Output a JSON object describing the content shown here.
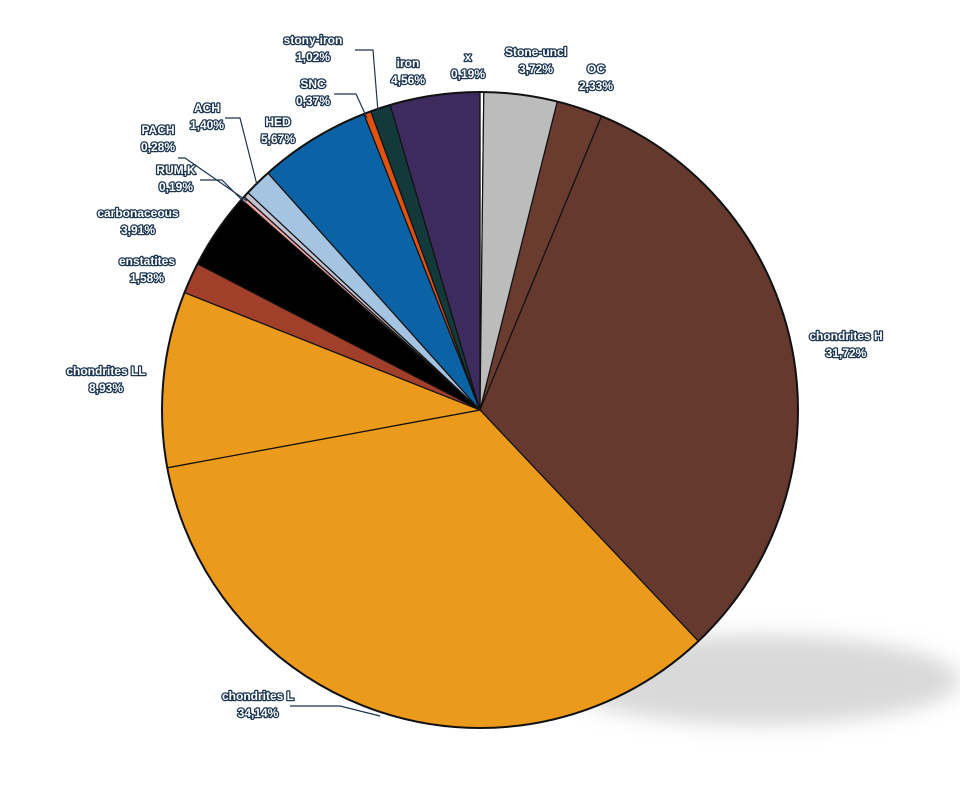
{
  "chart_data": {
    "type": "pie",
    "categories": [
      "x",
      "Stone-uncl",
      "OC",
      "chondrites H",
      "chondrites L",
      "chondrites LL",
      "enstatites",
      "carbonaceous",
      "RUM,K",
      "PACH",
      "ACH",
      "HED",
      "SNC",
      "stony-iron",
      "iron"
    ],
    "values": [
      0.19,
      3.72,
      2.33,
      31.72,
      34.14,
      8.93,
      1.58,
      3.91,
      0.19,
      0.28,
      1.4,
      5.67,
      0.37,
      1.02,
      4.56
    ],
    "value_labels": [
      "0,19%",
      "3,72%",
      "2,33%",
      "31,72%",
      "34,14%",
      "8,93%",
      "1,58%",
      "3,91%",
      "0,19%",
      "0,28%",
      "1,40%",
      "5,67%",
      "0,37%",
      "1,02%",
      "4,56%"
    ],
    "colors": [
      "#ffffff",
      "#bcbcbc",
      "#6a3b2f",
      "#66392f",
      "#ec9a1b",
      "#ec9a1b",
      "#a23f2b",
      "#000000",
      "#f2a6a6",
      "#c4c4d4",
      "#a5c4e2",
      "#0b63a6",
      "#e0520f",
      "#123a3a",
      "#3d2b5e"
    ]
  }
}
